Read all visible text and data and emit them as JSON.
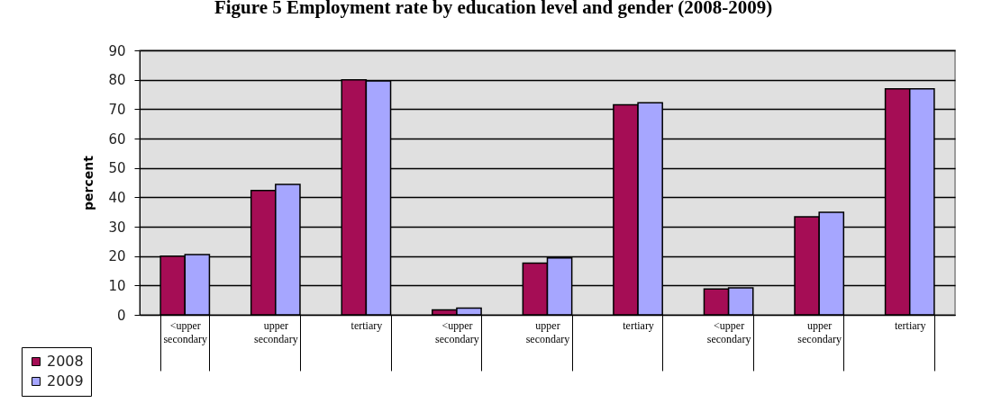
{
  "chart_data": {
    "type": "bar",
    "title": "Figure 5 Employment rate by education level and gender (2008-2009)",
    "ylabel": "percent",
    "categories": [
      "<upper secondary",
      "upper secondary",
      "tertiary",
      "<upper secondary",
      "upper secondary",
      "tertiary",
      "<upper secondary",
      "upper secondary",
      "tertiary"
    ],
    "series": [
      {
        "name": "2008",
        "color": "#a50d55",
        "values": [
          20.0,
          42.3,
          80.0,
          1.7,
          17.6,
          71.5,
          8.8,
          33.4,
          76.9
        ]
      },
      {
        "name": "2009",
        "color": "#a6a6ff",
        "values": [
          20.5,
          44.4,
          79.6,
          2.3,
          19.4,
          72.2,
          9.2,
          34.9,
          76.9
        ]
      }
    ],
    "ylim": [
      0,
      90
    ],
    "yticks": [
      0,
      10,
      20,
      30,
      40,
      50,
      60,
      70,
      80,
      90
    ],
    "grid": "y",
    "legend": "bottom left"
  }
}
